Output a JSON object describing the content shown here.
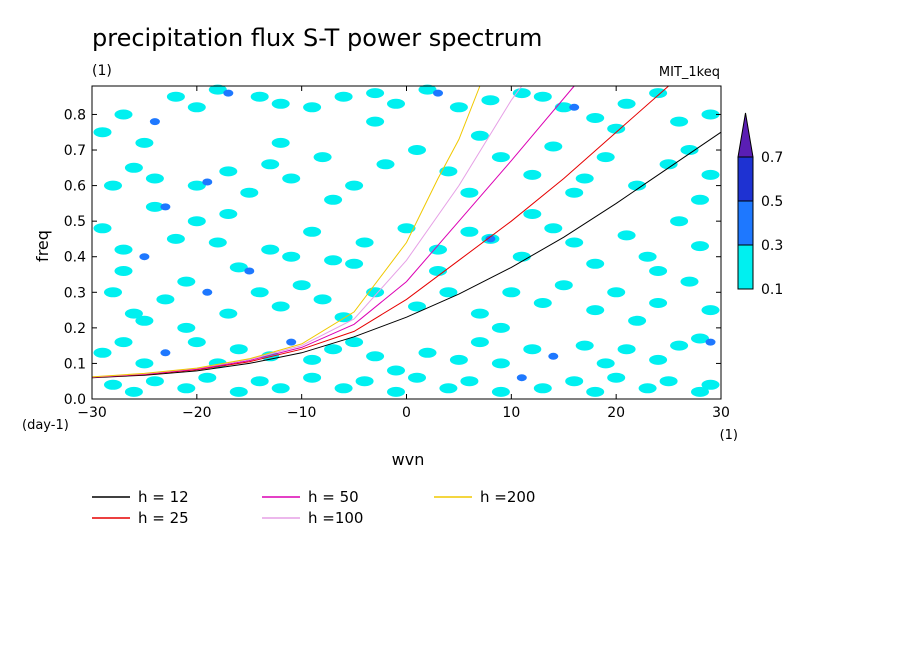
{
  "chart_data": {
    "type": "heatmap",
    "title": "precipitation flux S-T power spectrum",
    "subtitle_left": "(1)",
    "subtitle_right": "MIT_1keq",
    "xlabel": "wvn",
    "ylabel": "freq",
    "x_unit": "(1)",
    "y_unit": "(day-1)",
    "xlim": [
      -30,
      30
    ],
    "ylim": [
      0,
      0.88
    ],
    "x_ticks": [
      -30,
      -20,
      -10,
      0,
      10,
      20,
      30
    ],
    "y_ticks": [
      0.0,
      0.1,
      0.2,
      0.3,
      0.4,
      0.5,
      0.6,
      0.7,
      0.8
    ],
    "colorbar": {
      "levels": [
        "0.1",
        "0.3",
        "0.5",
        "0.7"
      ],
      "colors": [
        "#00f0f0",
        "#1e78ff",
        "#1e32d2",
        "#5a1eb4"
      ]
    },
    "legend": [
      {
        "label": "h = 12",
        "color": "#000000"
      },
      {
        "label": "h = 25",
        "color": "#e60000"
      },
      {
        "label": "h = 50",
        "color": "#dc00b4"
      },
      {
        "label": "h =100",
        "color": "#e6a0e6"
      },
      {
        "label": "h =200",
        "color": "#f0c800"
      }
    ],
    "series": [
      {
        "name": "h = 12",
        "x": [
          -30,
          -25,
          -20,
          -15,
          -10,
          -5,
          0,
          5,
          10,
          15,
          20,
          25,
          30
        ],
        "y": [
          0.06,
          0.067,
          0.079,
          0.1,
          0.13,
          0.175,
          0.23,
          0.295,
          0.37,
          0.455,
          0.55,
          0.65,
          0.75
        ]
      },
      {
        "name": "h = 25",
        "x": [
          -30,
          -25,
          -20,
          -15,
          -10,
          -5,
          0,
          5,
          10,
          15,
          20,
          25
        ],
        "y": [
          0.061,
          0.069,
          0.082,
          0.105,
          0.14,
          0.19,
          0.28,
          0.39,
          0.5,
          0.62,
          0.75,
          0.88
        ]
      },
      {
        "name": "h = 50",
        "x": [
          -30,
          -25,
          -20,
          -15,
          -10,
          -5,
          0,
          5,
          10,
          16
        ],
        "y": [
          0.061,
          0.07,
          0.084,
          0.108,
          0.145,
          0.21,
          0.33,
          0.5,
          0.67,
          0.88
        ]
      },
      {
        "name": "h =100",
        "x": [
          -30,
          -25,
          -20,
          -15,
          -10,
          -5,
          0,
          5,
          10,
          11
        ],
        "y": [
          0.062,
          0.071,
          0.086,
          0.111,
          0.15,
          0.225,
          0.39,
          0.6,
          0.84,
          0.88
        ]
      },
      {
        "name": "h =200",
        "x": [
          -30,
          -25,
          -20,
          -15,
          -10,
          -5,
          0,
          3,
          5,
          7
        ],
        "y": [
          0.062,
          0.072,
          0.087,
          0.113,
          0.155,
          0.245,
          0.44,
          0.62,
          0.73,
          0.88
        ]
      }
    ],
    "cells": [
      [
        -29,
        0.75,
        1
      ],
      [
        -27,
        0.8,
        1
      ],
      [
        -25,
        0.72,
        1
      ],
      [
        -24,
        0.78,
        2
      ],
      [
        -22,
        0.85,
        1
      ],
      [
        -20,
        0.82,
        1
      ],
      [
        -18,
        0.87,
        1
      ],
      [
        -17,
        0.86,
        2
      ],
      [
        -14,
        0.85,
        1
      ],
      [
        -12,
        0.83,
        1
      ],
      [
        -9,
        0.82,
        1
      ],
      [
        -6,
        0.85,
        1
      ],
      [
        -3,
        0.86,
        1
      ],
      [
        -1,
        0.83,
        1
      ],
      [
        2,
        0.87,
        1
      ],
      [
        3,
        0.86,
        2
      ],
      [
        5,
        0.82,
        1
      ],
      [
        8,
        0.84,
        1
      ],
      [
        11,
        0.86,
        1
      ],
      [
        13,
        0.85,
        1
      ],
      [
        15,
        0.82,
        1
      ],
      [
        16,
        0.82,
        2
      ],
      [
        18,
        0.79,
        1
      ],
      [
        21,
        0.83,
        1
      ],
      [
        24,
        0.86,
        1
      ],
      [
        26,
        0.78,
        1
      ],
      [
        29,
        0.8,
        1
      ],
      [
        -28,
        0.6,
        1
      ],
      [
        -26,
        0.65,
        1
      ],
      [
        -24,
        0.54,
        1
      ],
      [
        -23,
        0.54,
        2
      ],
      [
        -20,
        0.6,
        1
      ],
      [
        -19,
        0.61,
        2
      ],
      [
        -17,
        0.64,
        1
      ],
      [
        -15,
        0.58,
        1
      ],
      [
        -13,
        0.66,
        1
      ],
      [
        -11,
        0.62,
        1
      ],
      [
        -8,
        0.68,
        1
      ],
      [
        -5,
        0.6,
        1
      ],
      [
        -2,
        0.66,
        1
      ],
      [
        1,
        0.7,
        1
      ],
      [
        4,
        0.64,
        1
      ],
      [
        6,
        0.58,
        1
      ],
      [
        9,
        0.68,
        1
      ],
      [
        12,
        0.63,
        1
      ],
      [
        14,
        0.71,
        1
      ],
      [
        17,
        0.62,
        1
      ],
      [
        19,
        0.68,
        1
      ],
      [
        22,
        0.6,
        1
      ],
      [
        25,
        0.66,
        1
      ],
      [
        27,
        0.7,
        1
      ],
      [
        29,
        0.63,
        1
      ],
      [
        -29,
        0.48,
        1
      ],
      [
        -27,
        0.42,
        1
      ],
      [
        -25,
        0.4,
        2
      ],
      [
        -22,
        0.45,
        1
      ],
      [
        -20,
        0.5,
        1
      ],
      [
        -18,
        0.44,
        1
      ],
      [
        -16,
        0.37,
        1
      ],
      [
        -15,
        0.36,
        2
      ],
      [
        -13,
        0.42,
        1
      ],
      [
        -11,
        0.4,
        1
      ],
      [
        -9,
        0.47,
        1
      ],
      [
        -7,
        0.39,
        1
      ],
      [
        -4,
        0.44,
        1
      ],
      [
        0,
        0.48,
        1
      ],
      [
        3,
        0.42,
        1
      ],
      [
        6,
        0.47,
        1
      ],
      [
        8,
        0.45,
        1
      ],
      [
        8,
        0.45,
        2
      ],
      [
        11,
        0.4,
        1
      ],
      [
        14,
        0.48,
        1
      ],
      [
        16,
        0.44,
        1
      ],
      [
        18,
        0.38,
        1
      ],
      [
        21,
        0.46,
        1
      ],
      [
        23,
        0.4,
        1
      ],
      [
        26,
        0.5,
        1
      ],
      [
        28,
        0.43,
        1
      ],
      [
        -28,
        0.3,
        1
      ],
      [
        -26,
        0.24,
        1
      ],
      [
        -23,
        0.28,
        1
      ],
      [
        -21,
        0.33,
        1
      ],
      [
        -19,
        0.3,
        2
      ],
      [
        -17,
        0.24,
        1
      ],
      [
        -14,
        0.3,
        1
      ],
      [
        -12,
        0.26,
        1
      ],
      [
        -10,
        0.32,
        1
      ],
      [
        -8,
        0.28,
        1
      ],
      [
        -6,
        0.23,
        1
      ],
      [
        -3,
        0.3,
        1
      ],
      [
        1,
        0.26,
        1
      ],
      [
        4,
        0.3,
        1
      ],
      [
        7,
        0.24,
        1
      ],
      [
        10,
        0.3,
        1
      ],
      [
        13,
        0.27,
        1
      ],
      [
        15,
        0.32,
        1
      ],
      [
        18,
        0.25,
        1
      ],
      [
        20,
        0.3,
        1
      ],
      [
        24,
        0.27,
        1
      ],
      [
        27,
        0.33,
        1
      ],
      [
        29,
        0.25,
        1
      ],
      [
        -29,
        0.13,
        1
      ],
      [
        -27,
        0.16,
        1
      ],
      [
        -25,
        0.1,
        1
      ],
      [
        -23,
        0.13,
        2
      ],
      [
        -20,
        0.16,
        1
      ],
      [
        -18,
        0.1,
        1
      ],
      [
        -16,
        0.14,
        1
      ],
      [
        -13,
        0.12,
        1
      ],
      [
        -11,
        0.16,
        2
      ],
      [
        -9,
        0.11,
        1
      ],
      [
        -7,
        0.14,
        1
      ],
      [
        -5,
        0.16,
        1
      ],
      [
        -3,
        0.12,
        1
      ],
      [
        -1,
        0.08,
        1
      ],
      [
        2,
        0.13,
        1
      ],
      [
        5,
        0.11,
        1
      ],
      [
        7,
        0.16,
        1
      ],
      [
        9,
        0.1,
        1
      ],
      [
        12,
        0.14,
        1
      ],
      [
        14,
        0.12,
        2
      ],
      [
        17,
        0.15,
        1
      ],
      [
        19,
        0.1,
        1
      ],
      [
        21,
        0.14,
        1
      ],
      [
        24,
        0.11,
        1
      ],
      [
        26,
        0.15,
        1
      ],
      [
        28,
        0.17,
        1
      ],
      [
        29,
        0.16,
        2
      ],
      [
        -28,
        0.04,
        1
      ],
      [
        -26,
        0.02,
        1
      ],
      [
        -24,
        0.05,
        1
      ],
      [
        -21,
        0.03,
        1
      ],
      [
        -19,
        0.06,
        1
      ],
      [
        -16,
        0.02,
        1
      ],
      [
        -14,
        0.05,
        1
      ],
      [
        -12,
        0.03,
        1
      ],
      [
        -9,
        0.06,
        1
      ],
      [
        -6,
        0.03,
        1
      ],
      [
        -4,
        0.05,
        1
      ],
      [
        -1,
        0.02,
        1
      ],
      [
        1,
        0.06,
        1
      ],
      [
        4,
        0.03,
        1
      ],
      [
        6,
        0.05,
        1
      ],
      [
        9,
        0.02,
        1
      ],
      [
        11,
        0.06,
        2
      ],
      [
        13,
        0.03,
        1
      ],
      [
        16,
        0.05,
        1
      ],
      [
        18,
        0.02,
        1
      ],
      [
        20,
        0.06,
        1
      ],
      [
        23,
        0.03,
        1
      ],
      [
        25,
        0.05,
        1
      ],
      [
        28,
        0.02,
        1
      ],
      [
        29,
        0.04,
        1
      ],
      [
        -27,
        0.36,
        1
      ],
      [
        -24,
        0.62,
        1
      ],
      [
        -21,
        0.2,
        1
      ],
      [
        -17,
        0.52,
        1
      ],
      [
        -12,
        0.72,
        1
      ],
      [
        -7,
        0.56,
        1
      ],
      [
        -3,
        0.78,
        1
      ],
      [
        3,
        0.36,
        1
      ],
      [
        7,
        0.74,
        1
      ],
      [
        12,
        0.52,
        1
      ],
      [
        16,
        0.58,
        1
      ],
      [
        20,
        0.76,
        1
      ],
      [
        24,
        0.36,
        1
      ],
      [
        28,
        0.56,
        1
      ],
      [
        -25,
        0.22,
        1
      ],
      [
        -5,
        0.38,
        1
      ],
      [
        9,
        0.2,
        1
      ],
      [
        22,
        0.22,
        1
      ]
    ]
  }
}
